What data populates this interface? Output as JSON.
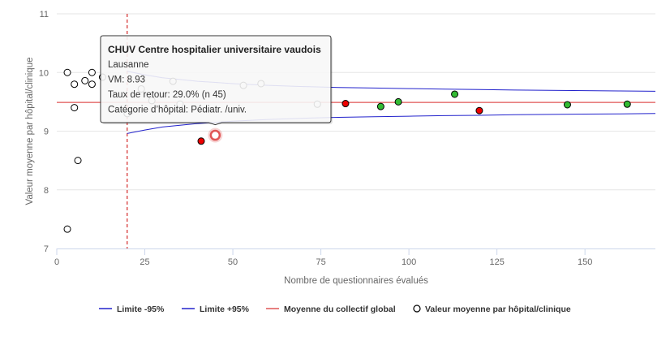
{
  "chart_data": {
    "type": "scatter",
    "title": "",
    "xlabel": "Nombre de questionnaires évalués",
    "ylabel": "Valeur moyenne par hôpital/clinique",
    "xlim": [
      0,
      170
    ],
    "ylim": [
      7,
      11
    ],
    "x_ticks": [
      0,
      25,
      50,
      75,
      100,
      125,
      150
    ],
    "y_ticks": [
      7,
      8,
      9,
      10,
      11
    ],
    "grid": "horizontal",
    "legend_position": "bottom",
    "colors": {
      "limit_lines": "#2222cc",
      "mean_line": "#e05555",
      "threshold_line": "#cc0000",
      "grid": "#e6e6e6",
      "axis": "#ccd6eb",
      "above": "#33bb33",
      "below": "#ee0000",
      "neutral": "#ffffff",
      "highlight_ring": "#e05555"
    },
    "min_count_threshold": 20,
    "global_mean": 9.49,
    "limit_lower_95": {
      "name": "Limite -95%",
      "x": [
        20,
        25,
        30,
        35,
        40,
        45,
        50,
        60,
        70,
        80,
        90,
        100,
        110,
        120,
        130,
        140,
        150,
        160,
        170
      ],
      "y": [
        8.96,
        9.02,
        9.07,
        9.1,
        9.13,
        9.15,
        9.17,
        9.2,
        9.22,
        9.235,
        9.245,
        9.255,
        9.265,
        9.27,
        9.28,
        9.285,
        9.29,
        9.295,
        9.3
      ]
    },
    "limit_upper_95": {
      "name": "Limite +95%",
      "x": [
        20,
        25,
        30,
        35,
        40,
        45,
        50,
        60,
        70,
        80,
        90,
        100,
        110,
        120,
        130,
        140,
        150,
        160,
        170
      ],
      "y": [
        10.02,
        9.96,
        9.91,
        9.88,
        9.85,
        9.83,
        9.81,
        9.78,
        9.76,
        9.745,
        9.735,
        9.725,
        9.715,
        9.71,
        9.7,
        9.695,
        9.69,
        9.685,
        9.68
      ]
    },
    "mean_line": {
      "name": "Moyenne du collectif global"
    },
    "series": [
      {
        "name": "Valeur moyenne par hôpital/clinique",
        "points": [
          {
            "x": 3,
            "y": 7.33,
            "status": "neutral"
          },
          {
            "x": 3,
            "y": 10.0,
            "status": "neutral"
          },
          {
            "x": 5,
            "y": 9.8,
            "status": "neutral"
          },
          {
            "x": 5,
            "y": 9.4,
            "status": "neutral"
          },
          {
            "x": 6,
            "y": 8.5,
            "status": "neutral"
          },
          {
            "x": 8,
            "y": 9.86,
            "status": "neutral"
          },
          {
            "x": 10,
            "y": 10.0,
            "status": "neutral"
          },
          {
            "x": 10,
            "y": 9.8,
            "status": "neutral"
          },
          {
            "x": 13,
            "y": 9.92,
            "status": "neutral"
          },
          {
            "x": 20,
            "y": 9.3,
            "status": "neutral"
          },
          {
            "x": 24,
            "y": 9.72,
            "status": "neutral"
          },
          {
            "x": 27,
            "y": 9.52,
            "status": "neutral"
          },
          {
            "x": 33,
            "y": 9.85,
            "status": "neutral"
          },
          {
            "x": 35,
            "y": 9.46,
            "status": "neutral"
          },
          {
            "x": 41,
            "y": 8.83,
            "status": "below"
          },
          {
            "x": 45,
            "y": 8.93,
            "status": "highlight"
          },
          {
            "x": 53,
            "y": 9.78,
            "status": "neutral"
          },
          {
            "x": 58,
            "y": 9.81,
            "status": "neutral"
          },
          {
            "x": 74,
            "y": 9.46,
            "status": "neutral"
          },
          {
            "x": 82,
            "y": 9.47,
            "status": "below"
          },
          {
            "x": 92,
            "y": 9.42,
            "status": "above"
          },
          {
            "x": 97,
            "y": 9.5,
            "status": "above"
          },
          {
            "x": 113,
            "y": 9.63,
            "status": "above"
          },
          {
            "x": 120,
            "y": 9.35,
            "status": "below"
          },
          {
            "x": 145,
            "y": 9.45,
            "status": "above"
          },
          {
            "x": 162,
            "y": 9.46,
            "status": "above"
          }
        ]
      }
    ],
    "legend": [
      {
        "label": "Limite -95%",
        "symbol": "line",
        "color": "#2222cc"
      },
      {
        "label": "Limite +95%",
        "symbol": "line",
        "color": "#2222cc"
      },
      {
        "label": "Moyenne du collectif global",
        "symbol": "line",
        "color": "#e05555"
      },
      {
        "label": "Valeur moyenne par hôpital/clinique",
        "symbol": "circle",
        "color": "#000000"
      }
    ],
    "tooltip": {
      "title": "CHUV Centre hospitalier universitaire vaudois",
      "lines": [
        "Lausanne",
        "VM: 8.93",
        "Taux de retour: 29.0% (n 45)",
        "Catégorie d’hôpital: Pédiatr. /univ."
      ],
      "anchor_x": 45,
      "anchor_y": 8.93
    }
  }
}
